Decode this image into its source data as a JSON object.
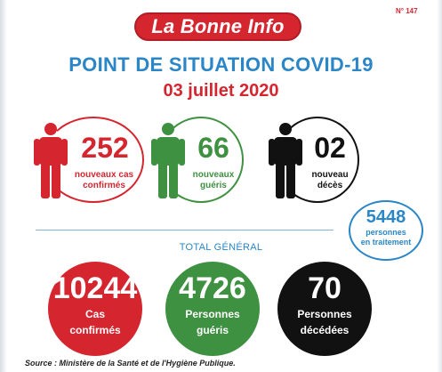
{
  "header": {
    "brand": "La Bonne Info",
    "issue": "N° 147",
    "title": "POINT DE SITUATION COVID-19",
    "date": "03 juillet 2020"
  },
  "daily": [
    {
      "value": "252",
      "line1": "nouveaux cas",
      "line2": "confirmés",
      "color": "#d5262f"
    },
    {
      "value": "66",
      "line1": "nouveaux",
      "line2": "guéris",
      "color": "#3f9142"
    },
    {
      "value": "02",
      "line1": "nouveau",
      "line2": "décès",
      "color": "#111111"
    }
  ],
  "treatment": {
    "value": "5448",
    "line1": "personnes",
    "line2": "en traitement",
    "color": "#2a86c6"
  },
  "total_label": "TOTAL GÉNÉRAL",
  "totals": [
    {
      "value": "10244",
      "line1": "Cas",
      "line2": "confirmés",
      "color": "#d5262f"
    },
    {
      "value": "4726",
      "line1": "Personnes",
      "line2": "guéris",
      "color": "#3f9142"
    },
    {
      "value": "70",
      "line1": "Personnes",
      "line2": "décédées",
      "color": "#111111"
    }
  ],
  "source": "Source : Ministère de la Santé et de l'Hygiène Publique."
}
